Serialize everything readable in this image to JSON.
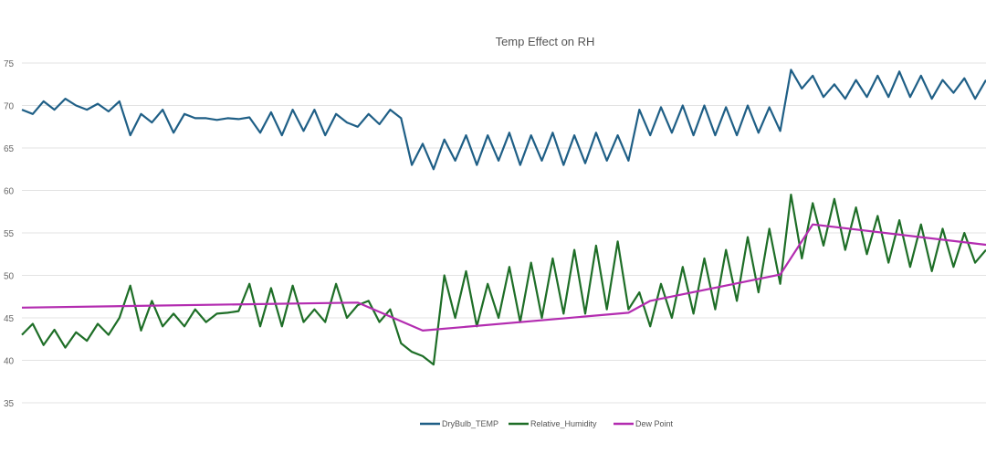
{
  "chart_data": {
    "type": "line",
    "title": "Temp Effect on RH",
    "xlabel": "",
    "ylabel": "",
    "ylim": [
      35,
      75
    ],
    "yticks": [
      "35",
      "40",
      "45",
      "50",
      "55",
      "60",
      "65",
      "70",
      "75"
    ],
    "x_range": [
      0,
      89
    ],
    "grid": true,
    "legend": "bottom",
    "series": [
      {
        "name": "DryBulb_TEMP",
        "color": "#1f5f86",
        "x": "index",
        "values": [
          69.5,
          69,
          70.5,
          69.5,
          70.8,
          70,
          69.5,
          70.2,
          69.3,
          70.5,
          66.5,
          69,
          68,
          69.5,
          66.8,
          69,
          68.5,
          68.5,
          68.3,
          68.5,
          68.4,
          68.6,
          66.8,
          69.2,
          66.5,
          69.5,
          67,
          69.5,
          66.5,
          69,
          68,
          67.5,
          69,
          67.8,
          69.5,
          68.5,
          63,
          65.5,
          62.5,
          66,
          63.5,
          66.5,
          63,
          66.5,
          63.5,
          66.8,
          63,
          66.5,
          63.5,
          66.8,
          63,
          66.5,
          63.2,
          66.8,
          63.5,
          66.5,
          63.5,
          69.5,
          66.5,
          69.8,
          66.8,
          70,
          66.5,
          70,
          66.5,
          69.8,
          66.5,
          70,
          66.8,
          69.8,
          67,
          74.2,
          72,
          73.5,
          71,
          72.5,
          70.8,
          73,
          71,
          73.5,
          71,
          74,
          71,
          73.5,
          70.8,
          73,
          71.5,
          73.2,
          70.8,
          73
        ]
      },
      {
        "name": "Relative_Humidity",
        "color": "#1e6e27",
        "x": "index",
        "values": [
          43,
          44.3,
          41.8,
          43.6,
          41.5,
          43.3,
          42.3,
          44.3,
          43,
          45,
          48.8,
          43.5,
          47,
          44,
          45.5,
          44,
          46,
          44.5,
          45.5,
          45.6,
          45.8,
          49,
          44,
          48.5,
          44,
          48.8,
          44.5,
          46,
          44.5,
          49,
          45,
          46.5,
          47,
          44.5,
          46,
          42,
          41,
          40.5,
          39.5,
          50,
          45,
          50.5,
          44,
          49,
          45,
          51,
          44.5,
          51.5,
          45,
          52,
          45.5,
          53,
          45.5,
          53.5,
          46,
          54,
          46,
          48,
          44,
          49,
          45,
          51,
          45.5,
          52,
          46,
          53,
          47,
          54.5,
          48,
          55.5,
          49,
          59.5,
          52,
          58.5,
          53.5,
          59,
          53,
          58,
          52.5,
          57,
          51.5,
          56.5,
          51,
          56,
          50.5,
          55.5,
          51,
          55,
          51.5,
          53
        ]
      },
      {
        "name": "Dew Point",
        "color": "#b32cb0",
        "x": [
          0,
          10,
          31,
          37,
          56,
          58,
          70,
          73,
          89
        ],
        "values": [
          46.2,
          46.4,
          46.8,
          43.5,
          45.6,
          47,
          50.1,
          56,
          53.6
        ]
      }
    ]
  }
}
